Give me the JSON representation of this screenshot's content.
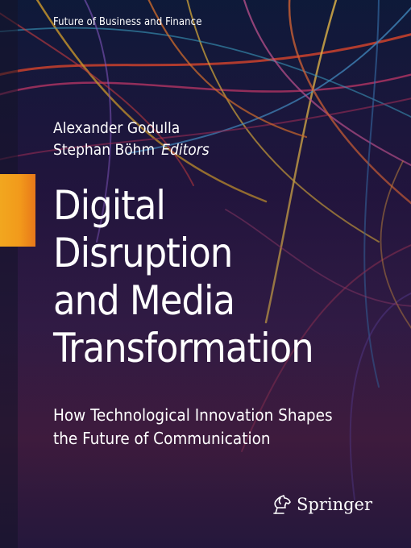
{
  "series": "Future of Business and Finance",
  "editors": [
    "Alexander Godulla",
    "Stephan Böhm"
  ],
  "editors_role": "Editors",
  "title_lines": [
    "Digital",
    "Disruption",
    "and Media",
    "Transformation"
  ],
  "subtitle_lines": [
    "How Technological Innovation Shapes",
    "the Future of Communication"
  ],
  "publisher": "Springer",
  "colors": {
    "accent": "#f2a71f",
    "background": "#241640",
    "text": "#ffffff"
  },
  "icons": {
    "publisher_logo": "springer-horse-icon"
  }
}
